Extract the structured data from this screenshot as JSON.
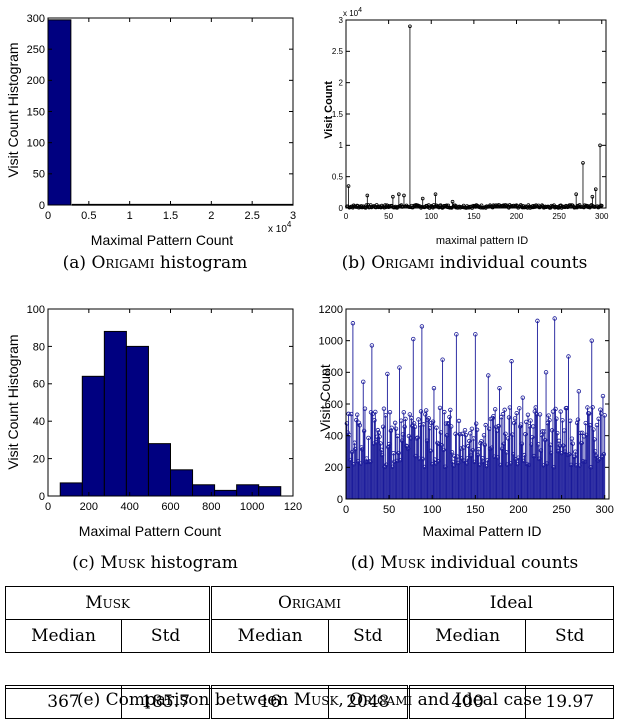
{
  "charts": {
    "a": {
      "type": "bar",
      "xlabel": "Maximal Pattern Count",
      "ylabel": "Visit Count Histogram",
      "xlim": [
        0,
        3
      ],
      "ylim": [
        0,
        300
      ],
      "xticks": [
        "0",
        "0.5",
        "1",
        "1.5",
        "2",
        "2.5",
        "3"
      ],
      "yticks": [
        "0",
        "50",
        "100",
        "150",
        "200",
        "250",
        "300"
      ],
      "xmultiplier": "x 10",
      "xmultiplier_exp": "4",
      "bars": [
        {
          "x0": 0,
          "x1": 0.28,
          "y": 297
        },
        {
          "x0": 0.3,
          "x1": 3,
          "y": 1
        }
      ]
    },
    "b": {
      "type": "scatter-stem",
      "xlabel": "maximal pattern ID",
      "ylabel": "Visit Count",
      "xlim": [
        0,
        305
      ],
      "ylim": [
        0,
        3
      ],
      "xticks": [
        "0",
        "50",
        "100",
        "150",
        "200",
        "250",
        "300"
      ],
      "yticks": [
        "0",
        "0.5",
        "1",
        "1.5",
        "2",
        "2.5",
        "3"
      ],
      "ymultiplier": "x 10",
      "ymultiplier_exp": "4",
      "peaks": [
        {
          "x": 3,
          "y": 0.35
        },
        {
          "x": 25,
          "y": 0.2
        },
        {
          "x": 55,
          "y": 0.18
        },
        {
          "x": 62,
          "y": 0.22
        },
        {
          "x": 68,
          "y": 0.2
        },
        {
          "x": 75,
          "y": 2.9
        },
        {
          "x": 90,
          "y": 0.15
        },
        {
          "x": 105,
          "y": 0.22
        },
        {
          "x": 125,
          "y": 0.1
        },
        {
          "x": 270,
          "y": 0.22
        },
        {
          "x": 278,
          "y": 0.72
        },
        {
          "x": 289,
          "y": 0.18
        },
        {
          "x": 293,
          "y": 0.3
        },
        {
          "x": 298,
          "y": 1.0
        }
      ]
    },
    "c": {
      "type": "bar",
      "xlabel": "Maximal Pattern Count",
      "ylabel": "Visit Count Histogram",
      "xlim": [
        0,
        1200
      ],
      "ylim": [
        0,
        100
      ],
      "xticks": [
        "0",
        "200",
        "400",
        "600",
        "800",
        "1000",
        "120"
      ],
      "yticks": [
        "0",
        "20",
        "40",
        "60",
        "80",
        "100"
      ],
      "bars": [
        {
          "x0": 60,
          "x1": 168,
          "y": 7
        },
        {
          "x0": 168,
          "x1": 276,
          "y": 64
        },
        {
          "x0": 276,
          "x1": 384,
          "y": 88
        },
        {
          "x0": 384,
          "x1": 492,
          "y": 80
        },
        {
          "x0": 492,
          "x1": 600,
          "y": 28
        },
        {
          "x0": 600,
          "x1": 708,
          "y": 14
        },
        {
          "x0": 708,
          "x1": 816,
          "y": 6
        },
        {
          "x0": 816,
          "x1": 924,
          "y": 3
        },
        {
          "x0": 924,
          "x1": 1032,
          "y": 6
        },
        {
          "x0": 1032,
          "x1": 1140,
          "y": 5
        }
      ]
    },
    "d": {
      "type": "stem",
      "xlabel": "Maximal Pattern ID",
      "ylabel": "Visit Count",
      "xlim": [
        0,
        305
      ],
      "ylim": [
        0,
        1200
      ],
      "xticks": [
        "0",
        "50",
        "100",
        "150",
        "200",
        "250",
        "300"
      ],
      "yticks": [
        "0",
        "200",
        "400",
        "600",
        "800",
        "1000",
        "1200"
      ],
      "peaks": [
        {
          "x": 8,
          "y": 1110
        },
        {
          "x": 20,
          "y": 740
        },
        {
          "x": 30,
          "y": 970
        },
        {
          "x": 48,
          "y": 790
        },
        {
          "x": 62,
          "y": 830
        },
        {
          "x": 78,
          "y": 1010
        },
        {
          "x": 88,
          "y": 1090
        },
        {
          "x": 102,
          "y": 700
        },
        {
          "x": 112,
          "y": 880
        },
        {
          "x": 128,
          "y": 1040
        },
        {
          "x": 150,
          "y": 1040
        },
        {
          "x": 165,
          "y": 780
        },
        {
          "x": 178,
          "y": 700
        },
        {
          "x": 192,
          "y": 870
        },
        {
          "x": 205,
          "y": 640
        },
        {
          "x": 222,
          "y": 1125
        },
        {
          "x": 232,
          "y": 800
        },
        {
          "x": 242,
          "y": 1140
        },
        {
          "x": 258,
          "y": 900
        },
        {
          "x": 270,
          "y": 680
        },
        {
          "x": 285,
          "y": 1000
        },
        {
          "x": 298,
          "y": 650
        }
      ]
    }
  },
  "captions": {
    "a_prefix": "(a)",
    "a_name": "Origami",
    "a_suffix": "histogram",
    "b_prefix": "(b)",
    "b_name": "Origami",
    "b_suffix": "individual counts",
    "c_prefix": "(c)",
    "c_name": "Musk",
    "c_suffix": "histogram",
    "d_prefix": "(d)",
    "d_name": "Musk",
    "d_suffix": "individual counts",
    "e_prefix": "(e) Comparison between",
    "e_name1": "Musk",
    "e_sep": ",",
    "e_name2": "Origami",
    "e_suffix": "and Ideal case"
  },
  "table": {
    "groups": [
      "Musk",
      "Origami",
      "Ideal"
    ],
    "subheaders": [
      "Median",
      "Std",
      "Median",
      "Std",
      "Median",
      "Std"
    ],
    "values": [
      "367",
      "185.7",
      "16",
      "2048",
      "400",
      "19.97"
    ]
  },
  "chart_data": [
    {
      "type": "bar",
      "xlabel": "Maximal Pattern Count",
      "ylabel": "Visit Count Histogram",
      "x_bins": [
        [
          0,
          2800
        ],
        [
          3000,
          30000
        ]
      ],
      "values": [
        297,
        1
      ],
      "xlim": [
        0,
        30000
      ],
      "ylim": [
        0,
        300
      ]
    },
    {
      "type": "scatter",
      "xlabel": "maximal pattern ID",
      "ylabel": "Visit Count",
      "x": [
        3,
        25,
        55,
        62,
        68,
        75,
        90,
        105,
        125,
        270,
        278,
        289,
        293,
        298
      ],
      "y": [
        3500,
        2000,
        1800,
        2200,
        2000,
        29000,
        1500,
        2200,
        1000,
        2200,
        7200,
        1800,
        3000,
        10000
      ],
      "xlim": [
        0,
        305
      ],
      "ylim": [
        0,
        30000
      ]
    },
    {
      "type": "bar",
      "xlabel": "Maximal Pattern Count",
      "ylabel": "Visit Count Histogram",
      "x_bins": [
        [
          60,
          168
        ],
        [
          168,
          276
        ],
        [
          276,
          384
        ],
        [
          384,
          492
        ],
        [
          492,
          600
        ],
        [
          600,
          708
        ],
        [
          708,
          816
        ],
        [
          816,
          924
        ],
        [
          924,
          1032
        ],
        [
          1032,
          1140
        ]
      ],
      "values": [
        7,
        64,
        88,
        80,
        28,
        14,
        6,
        3,
        6,
        5
      ],
      "xlim": [
        0,
        1200
      ],
      "ylim": [
        0,
        100
      ]
    },
    {
      "type": "scatter",
      "xlabel": "Maximal Pattern ID",
      "ylabel": "Visit Count",
      "x": [
        8,
        20,
        30,
        48,
        62,
        78,
        88,
        102,
        112,
        128,
        150,
        165,
        178,
        192,
        205,
        222,
        232,
        242,
        258,
        270,
        285,
        298
      ],
      "y": [
        1110,
        740,
        970,
        790,
        830,
        1010,
        1090,
        700,
        880,
        1040,
        1040,
        780,
        700,
        870,
        640,
        1125,
        800,
        1140,
        900,
        680,
        1000,
        650
      ],
      "xlim": [
        0,
        305
      ],
      "ylim": [
        0,
        1200
      ]
    },
    {
      "type": "table",
      "columns": [
        "Musk Median",
        "Musk Std",
        "Origami Median",
        "Origami Std",
        "Ideal Median",
        "Ideal Std"
      ],
      "rows": [
        [
          "367",
          "185.7",
          "16",
          "2048",
          "400",
          "19.97"
        ]
      ]
    }
  ]
}
